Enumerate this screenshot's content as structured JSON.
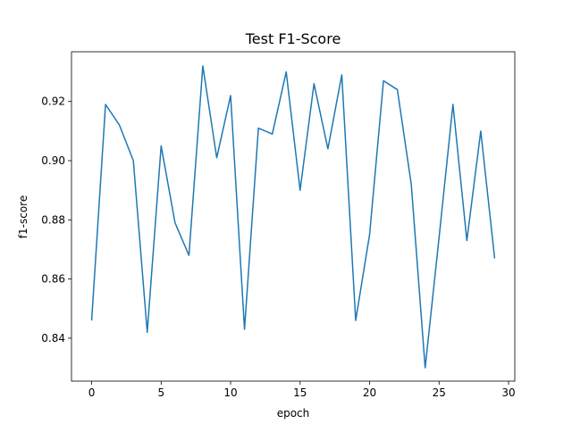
{
  "chart_data": {
    "type": "line",
    "title": "Test F1-Score",
    "xlabel": "epoch",
    "ylabel": "f1-score",
    "xlim": [
      -1.45,
      30.45
    ],
    "ylim": [
      0.8255,
      0.9368
    ],
    "grid": false,
    "x_ticks": [
      0,
      5,
      10,
      15,
      20,
      25,
      30
    ],
    "y_ticks": [
      0.84,
      0.86,
      0.88,
      0.9,
      0.92
    ],
    "y_tick_labels": [
      "0.84",
      "0.86",
      "0.88",
      "0.90",
      "0.92"
    ],
    "series": [
      {
        "color": "#1f77b4",
        "x": [
          0,
          1,
          2,
          3,
          4,
          5,
          6,
          7,
          8,
          9,
          10,
          11,
          12,
          13,
          14,
          15,
          16,
          17,
          18,
          19,
          20,
          21,
          22,
          23,
          24,
          25,
          26,
          27,
          28,
          29
        ],
        "values": [
          0.846,
          0.919,
          0.912,
          0.9,
          0.842,
          0.905,
          0.879,
          0.868,
          0.932,
          0.901,
          0.922,
          0.843,
          0.911,
          0.909,
          0.93,
          0.89,
          0.926,
          0.904,
          0.929,
          0.846,
          0.875,
          0.927,
          0.924,
          0.892,
          0.83,
          0.874,
          0.919,
          0.873,
          0.91,
          0.867
        ]
      }
    ]
  }
}
